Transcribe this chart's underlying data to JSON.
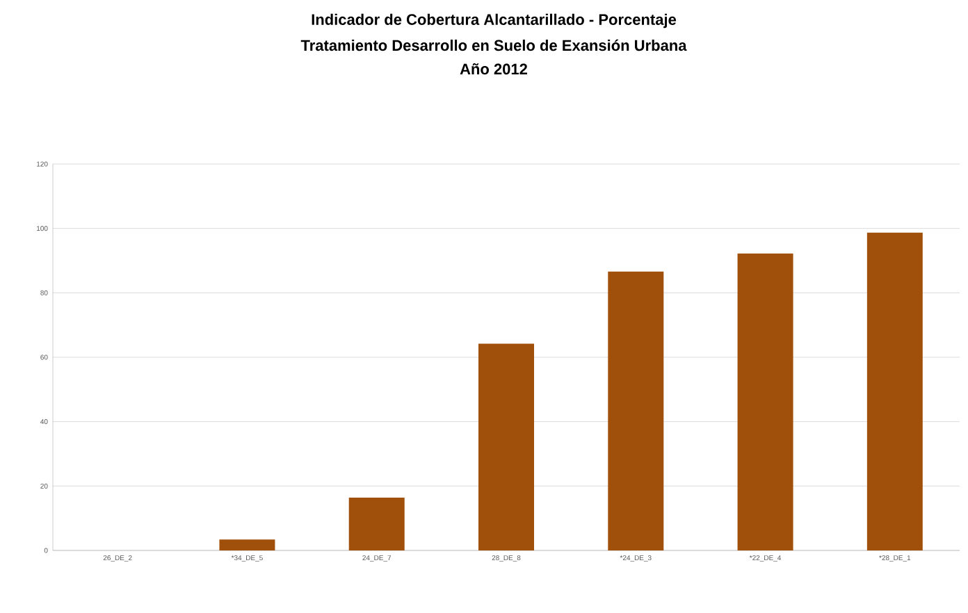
{
  "chart_data": {
    "type": "bar",
    "title": "Indicador de Cobertura Alcantarillado - Porcentaje",
    "subtitle": "Tratamiento Desarrollo en Suelo de Exansión Urbana\nAño 2012",
    "categories": [
      "26_DE_2",
      "*34_DE_5",
      "24_DE_7",
      "28_DE_8",
      "*24_DE_3",
      "*22_DE_4",
      "*28_DE_1"
    ],
    "values": [
      0,
      3.4,
      16.4,
      64.2,
      86.6,
      92.2,
      98.7
    ],
    "color": "#a0500a",
    "ylim": [
      0,
      120
    ],
    "yticks": [
      0,
      20,
      40,
      60,
      80,
      100,
      120
    ],
    "grid": "y"
  }
}
